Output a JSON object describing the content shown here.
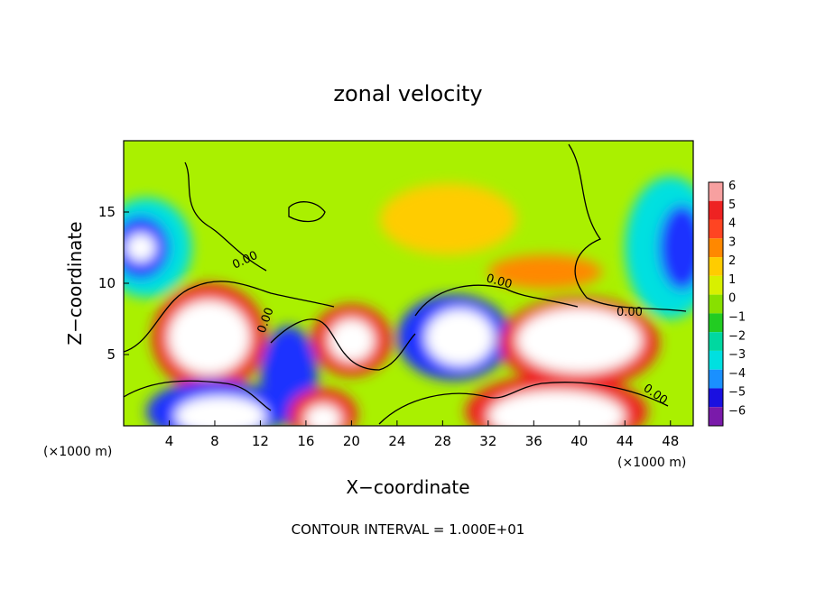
{
  "chart_data": {
    "type": "heatmap",
    "title": "zonal velocity",
    "xlabel": "X−coordinate",
    "ylabel": "Z−coordinate",
    "x_unit": "(×1000 m)",
    "x_unit_right": "(×1000 m)",
    "xlim": [
      0,
      50
    ],
    "ylim": [
      0,
      20
    ],
    "x_ticks": [
      "4",
      "8",
      "12",
      "16",
      "20",
      "24",
      "28",
      "32",
      "36",
      "40",
      "44",
      "48"
    ],
    "y_ticks": [
      "5",
      "10",
      "15"
    ],
    "footnote": "CONTOUR INTERVAL = 1.000E+01",
    "colorbar": {
      "ticks": [
        "6",
        "5",
        "4",
        "3",
        "2",
        "1",
        "0",
        "−1",
        "−2",
        "−3",
        "−4",
        "−5",
        "−6"
      ],
      "colors": [
        "#f7a0a0",
        "#ee2222",
        "#ff4422",
        "#ff8800",
        "#ffcc00",
        "#d8f000",
        "#88e000",
        "#22cc22",
        "#00d8a0",
        "#00e0e0",
        "#1a90ff",
        "#1a10e0",
        "#7a1aaa"
      ]
    },
    "contour_labels": [
      "0.00",
      "0.00",
      "0.00",
      "0.00",
      "0.00"
    ],
    "fields": {
      "background": "#aaf000",
      "blobs": [
        {
          "x": 2,
          "z": 12.5,
          "rx": 4,
          "rz": 3.5,
          "color": "#00e0e0"
        },
        {
          "x": 1.5,
          "z": 12.5,
          "rx": 2.5,
          "rz": 2.2,
          "color": "#1a30ff"
        },
        {
          "x": 1.5,
          "z": 12.5,
          "rx": 1.3,
          "rz": 1,
          "color": "#ffffff"
        },
        {
          "x": 48,
          "z": 12.5,
          "rx": 4,
          "rz": 5,
          "color": "#00e0e0"
        },
        {
          "x": 49,
          "z": 12.5,
          "rx": 2,
          "rz": 3,
          "color": "#1a30ff"
        },
        {
          "x": 28.5,
          "z": 14.5,
          "rx": 6,
          "rz": 2.5,
          "color": "#ffcc00"
        },
        {
          "x": 37,
          "z": 10.8,
          "rx": 5,
          "rz": 1.2,
          "color": "#ff8800"
        },
        {
          "x": 7.5,
          "z": 6.2,
          "rx": 5,
          "rz": 3.8,
          "color": "#ee2222"
        },
        {
          "x": 7.5,
          "z": 6.2,
          "rx": 3.6,
          "rz": 2.6,
          "color": "#ffffff"
        },
        {
          "x": 20,
          "z": 6,
          "rx": 3.5,
          "rz": 2.5,
          "color": "#ee2222"
        },
        {
          "x": 20,
          "z": 6,
          "rx": 2,
          "rz": 1.5,
          "color": "#ffffff"
        },
        {
          "x": 14.5,
          "z": 3.5,
          "rx": 2.5,
          "rz": 3.5,
          "color": "#1a30ff"
        },
        {
          "x": 29,
          "z": 6.2,
          "rx": 5,
          "rz": 3,
          "color": "#1a30ff"
        },
        {
          "x": 29.5,
          "z": 6.2,
          "rx": 3,
          "rz": 2,
          "color": "#ffffff"
        },
        {
          "x": 40,
          "z": 5.8,
          "rx": 7,
          "rz": 3.2,
          "color": "#ee2222"
        },
        {
          "x": 40,
          "z": 6,
          "rx": 5.5,
          "rz": 2.3,
          "color": "#ffffff"
        },
        {
          "x": 8,
          "z": 1,
          "rx": 6,
          "rz": 2.2,
          "color": "#1a30ff"
        },
        {
          "x": 8.5,
          "z": 0.7,
          "rx": 4,
          "rz": 1.4,
          "color": "#ffffff"
        },
        {
          "x": 17.5,
          "z": 0.8,
          "rx": 3,
          "rz": 1.8,
          "color": "#ee2222"
        },
        {
          "x": 17.5,
          "z": 0.5,
          "rx": 1.6,
          "rz": 1,
          "color": "#ffffff"
        },
        {
          "x": 38,
          "z": 1,
          "rx": 8,
          "rz": 2.6,
          "color": "#ee2222"
        },
        {
          "x": 38,
          "z": 0.7,
          "rx": 6,
          "rz": 1.8,
          "color": "#ffffff"
        }
      ]
    }
  }
}
